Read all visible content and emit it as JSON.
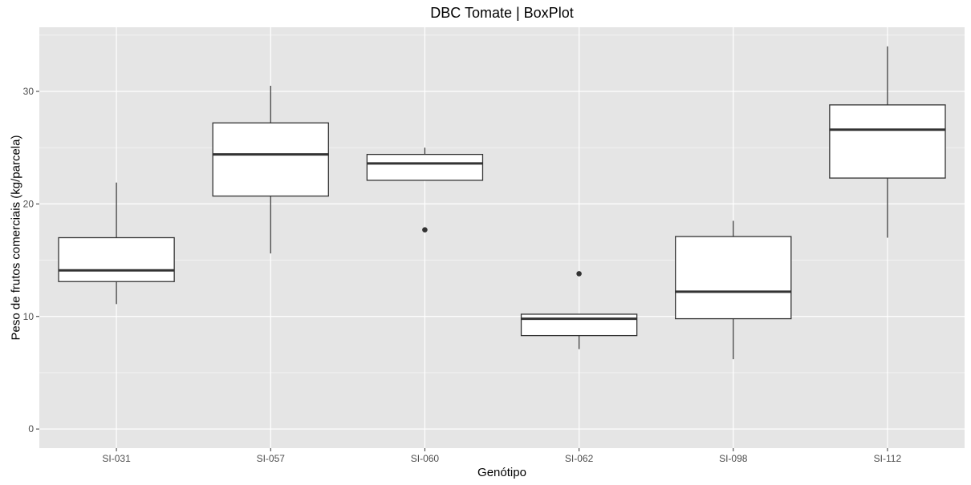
{
  "chart_data": {
    "type": "boxplot",
    "title": "DBC Tomate | BoxPlot",
    "xlabel": "Genótipo",
    "ylabel": "Peso de frutos comerciais (kg/parcela)",
    "ylim": [
      -1.7,
      35.7
    ],
    "yticks": [
      0,
      10,
      20,
      30
    ],
    "grid": true,
    "legend": "none",
    "colors": {
      "panel": "#e5e5e5",
      "grid_major": "#ffffff",
      "box_fill": "#ffffff",
      "box_line": "#333333"
    },
    "categories": [
      "SI-031",
      "SI-057",
      "SI-060",
      "SI-062",
      "SI-098",
      "SI-112"
    ],
    "boxes": [
      {
        "category": "SI-031",
        "whisker_low": 11.1,
        "q1": 13.1,
        "median": 14.1,
        "q3": 17.0,
        "whisker_high": 21.9,
        "outliers": []
      },
      {
        "category": "SI-057",
        "whisker_low": 15.6,
        "q1": 20.7,
        "median": 24.4,
        "q3": 27.2,
        "whisker_high": 30.5,
        "outliers": []
      },
      {
        "category": "SI-060",
        "whisker_low": 22.1,
        "q1": 22.1,
        "median": 23.6,
        "q3": 24.4,
        "whisker_high": 25.0,
        "outliers": [
          17.7
        ]
      },
      {
        "category": "SI-062",
        "whisker_low": 7.1,
        "q1": 8.3,
        "median": 9.8,
        "q3": 10.2,
        "whisker_high": 10.2,
        "outliers": [
          13.8
        ]
      },
      {
        "category": "SI-098",
        "whisker_low": 6.2,
        "q1": 9.8,
        "median": 12.2,
        "q3": 17.1,
        "whisker_high": 18.5,
        "outliers": []
      },
      {
        "category": "SI-112",
        "whisker_low": 17.0,
        "q1": 22.3,
        "median": 26.6,
        "q3": 28.8,
        "whisker_high": 34.0,
        "outliers": []
      }
    ]
  }
}
